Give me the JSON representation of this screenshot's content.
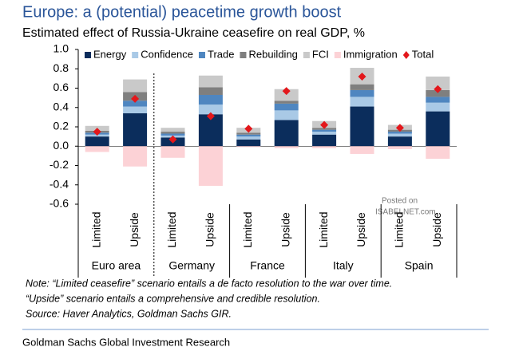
{
  "chart_data": {
    "type": "bar",
    "stacked": true,
    "title": "Europe: a (potential) peacetime growth boost",
    "subtitle": "Estimated effect of Russia-Ukraine ceasefire on real GDP, %",
    "categories": [
      "Limited",
      "Upside",
      "Limited",
      "Upside",
      "Limited",
      "Upside",
      "Limited",
      "Upside",
      "Limited",
      "Upside"
    ],
    "groups": [
      "Euro area",
      "Germany",
      "France",
      "Italy",
      "Spain"
    ],
    "series": [
      {
        "name": "Energy",
        "color": "#0b2d5c",
        "values": [
          0.1,
          0.34,
          0.09,
          0.33,
          0.07,
          0.27,
          0.12,
          0.41,
          0.1,
          0.36
        ]
      },
      {
        "name": "Confidence",
        "color": "#a9c9e6",
        "values": [
          0.02,
          0.07,
          0.02,
          0.1,
          0.03,
          0.1,
          0.03,
          0.1,
          0.03,
          0.09
        ]
      },
      {
        "name": "Trade",
        "color": "#4f86c0",
        "values": [
          0.02,
          0.06,
          0.02,
          0.1,
          0.02,
          0.07,
          0.02,
          0.07,
          0.02,
          0.06
        ]
      },
      {
        "name": "Rebuilding",
        "color": "#7f7f7f",
        "values": [
          0.02,
          0.09,
          0.02,
          0.08,
          0.02,
          0.03,
          0.02,
          0.06,
          0.02,
          0.07
        ]
      },
      {
        "name": "FCI",
        "color": "#c9c9c9",
        "values": [
          0.05,
          0.13,
          0.04,
          0.12,
          0.05,
          0.12,
          0.07,
          0.17,
          0.05,
          0.14
        ]
      },
      {
        "name": "Immigration",
        "color": "#fcd2d6",
        "values": [
          -0.06,
          -0.21,
          -0.12,
          -0.41,
          -0.01,
          -0.02,
          -0.02,
          -0.08,
          -0.03,
          -0.13
        ]
      },
      {
        "name": "Total",
        "color": "#e3171b",
        "marker": "diamond",
        "values": [
          0.15,
          0.49,
          0.07,
          0.31,
          0.18,
          0.57,
          0.22,
          0.72,
          0.19,
          0.59
        ]
      }
    ],
    "ylim": [
      -0.6,
      1.0
    ],
    "yticks": [
      {
        "value": 1,
        "label": "1.0"
      },
      0.8,
      0.6,
      0.4,
      0.2,
      {
        "value": 0,
        "label": "0.0"
      },
      -0.2,
      -0.4,
      -0.6
    ],
    "notes": [
      "Note: “Limited ceasefire” scenario entails a de facto resolution to the war over time.",
      "“Upside” scenario entails a comprehensive and credible resolution.",
      "Source: Haver Analytics, Goldman Sachs GIR."
    ],
    "watermark": [
      "Posted on",
      "ISABELNET.com"
    ],
    "footer": "Goldman Sachs Global Investment Research"
  }
}
